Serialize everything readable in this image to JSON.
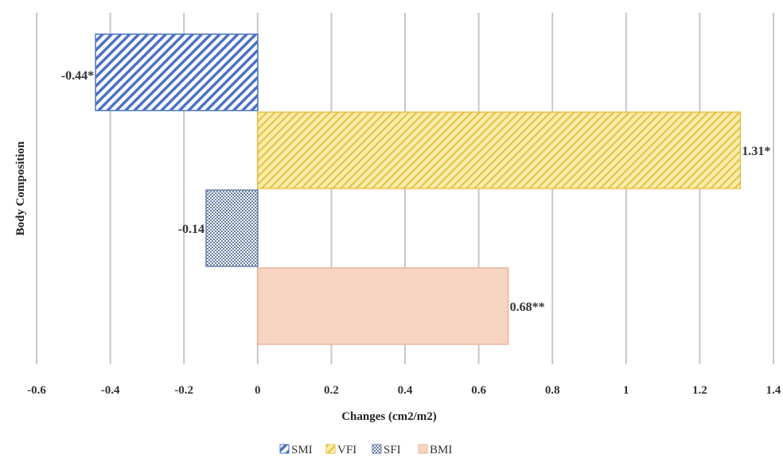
{
  "chart_data": {
    "type": "bar",
    "orientation": "horizontal",
    "xlabel": "Changes (cm2/m2)",
    "ylabel": "Body Composition",
    "xlim": [
      -0.6,
      1.4
    ],
    "x_ticks": [
      "-0.6",
      "-0.4",
      "-0.2",
      "0",
      "0.2",
      "0.4",
      "0.6",
      "0.8",
      "1",
      "1.2",
      "1.4"
    ],
    "grid": "vertical",
    "legend_position": "bottom",
    "series": [
      {
        "name": "SMI",
        "value": -0.44,
        "label": "-0.44*",
        "color": "#4a72c4",
        "fill": "#ffffff",
        "pattern": "diagonal-stripes"
      },
      {
        "name": "VFI",
        "value": 1.31,
        "label": "1.31*",
        "color": "#e6c24a",
        "fill": "#fbeeaa",
        "pattern": "diagonal-stripes"
      },
      {
        "name": "SFI",
        "value": -0.14,
        "label": "-0.14",
        "color": "#6a7ea8",
        "fill": "#ffffff",
        "pattern": "checker"
      },
      {
        "name": "BMI",
        "value": 0.68,
        "label": "0.68**",
        "color": "#e8b49a",
        "fill": "#f7d4c2",
        "pattern": "solid"
      }
    ]
  }
}
